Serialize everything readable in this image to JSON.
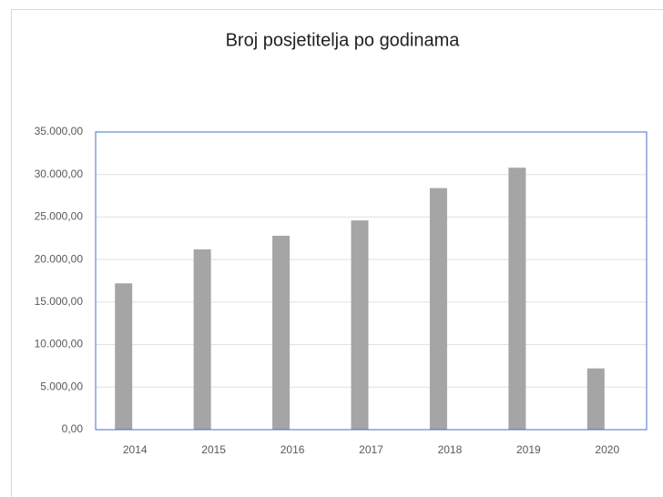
{
  "chart_data": {
    "type": "bar",
    "title": "Broj posjetitelja po godinama",
    "categories": [
      "2014",
      "2015",
      "2016",
      "2017",
      "2018",
      "2019",
      "2020"
    ],
    "values": [
      17200,
      21200,
      22800,
      24600,
      28400,
      30800,
      7200
    ],
    "color": "#a5a5a5",
    "ylim": [
      0,
      35000
    ],
    "yticks": [
      {
        "value": 0,
        "label": "0,00"
      },
      {
        "value": 5000,
        "label": "5.000,00"
      },
      {
        "value": 10000,
        "label": "10.000,00"
      },
      {
        "value": 15000,
        "label": "15.000,00"
      },
      {
        "value": 20000,
        "label": "20.000,00"
      },
      {
        "value": 25000,
        "label": "25.000,00"
      },
      {
        "value": 30000,
        "label": "30.000,00"
      },
      {
        "value": 35000,
        "label": "35.000,00"
      }
    ],
    "grid": true
  }
}
